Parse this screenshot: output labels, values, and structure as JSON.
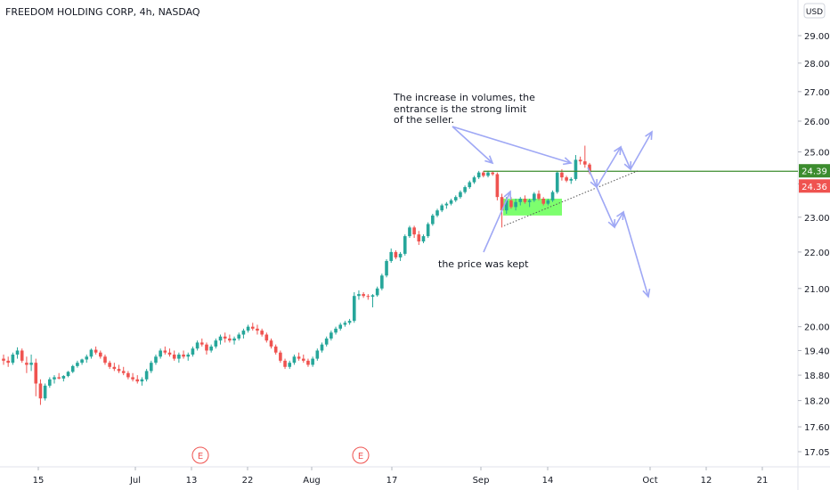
{
  "header": {
    "title": "FREEDOM HOLDING CORP, 4h, NASDAQ"
  },
  "currency_label": "USD",
  "colors": {
    "up": "#26a69a",
    "down": "#ef5350",
    "line": "#3c8c2e",
    "annotation": "#9fa8f5",
    "zone": "#66ff55",
    "price_badge": "#ef5350",
    "line_badge": "#3c8c2e"
  },
  "chart_data": {
    "type": "candlestick",
    "y_scale": "log",
    "ylim": [
      16.8,
      30.0
    ],
    "y_ticks": [
      "29.00",
      "28.00",
      "27.00",
      "26.00",
      "25.00",
      "24.00",
      "23.00",
      "22.00",
      "21.00",
      "20.00",
      "19.40",
      "18.80",
      "18.20",
      "17.60",
      "17.05"
    ],
    "x_ticks": [
      "15",
      "Jul",
      "13",
      "22",
      "Aug",
      "17",
      "Sep",
      "14",
      "Oct",
      "12",
      "21"
    ],
    "horizontal_level": {
      "value": 24.39,
      "label": "24.39"
    },
    "last_price": {
      "value": 24.36,
      "label": "24.36"
    },
    "earnings_markers": [
      "E",
      "E"
    ],
    "annotations": [
      "The increase in volumes, the",
      "entrance is the strong limit",
      "of the seller.",
      "the price was kept"
    ],
    "candles": [
      [
        19.2,
        19.3,
        19.05,
        19.15
      ],
      [
        19.15,
        19.25,
        19.0,
        19.1
      ],
      [
        19.1,
        19.35,
        19.05,
        19.3
      ],
      [
        19.3,
        19.48,
        19.2,
        19.4
      ],
      [
        19.4,
        19.45,
        19.1,
        19.15
      ],
      [
        19.1,
        19.25,
        18.85,
        19.05
      ],
      [
        19.05,
        19.3,
        18.9,
        19.1
      ],
      [
        19.1,
        19.2,
        18.3,
        18.6
      ],
      [
        18.6,
        18.7,
        18.1,
        18.25
      ],
      [
        18.25,
        18.6,
        18.2,
        18.55
      ],
      [
        18.55,
        18.75,
        18.5,
        18.7
      ],
      [
        18.7,
        18.8,
        18.6,
        18.75
      ],
      [
        18.75,
        18.85,
        18.7,
        18.72
      ],
      [
        18.72,
        18.8,
        18.65,
        18.78
      ],
      [
        18.78,
        18.9,
        18.75,
        18.88
      ],
      [
        18.88,
        19.05,
        18.85,
        19.02
      ],
      [
        19.02,
        19.15,
        18.98,
        19.1
      ],
      [
        19.1,
        19.2,
        19.05,
        19.18
      ],
      [
        19.18,
        19.3,
        19.1,
        19.25
      ],
      [
        19.25,
        19.45,
        19.2,
        19.42
      ],
      [
        19.42,
        19.5,
        19.3,
        19.35
      ],
      [
        19.35,
        19.4,
        19.2,
        19.25
      ],
      [
        19.25,
        19.3,
        19.05,
        19.1
      ],
      [
        19.1,
        19.15,
        18.95,
        19.0
      ],
      [
        19.0,
        19.1,
        18.9,
        18.95
      ],
      [
        18.95,
        19.05,
        18.85,
        18.9
      ],
      [
        18.9,
        19.0,
        18.8,
        18.85
      ],
      [
        18.85,
        18.9,
        18.7,
        18.75
      ],
      [
        18.75,
        18.85,
        18.65,
        18.7
      ],
      [
        18.7,
        18.8,
        18.6,
        18.65
      ],
      [
        18.65,
        18.75,
        18.55,
        18.7
      ],
      [
        18.7,
        18.95,
        18.65,
        18.9
      ],
      [
        18.9,
        19.15,
        18.85,
        19.1
      ],
      [
        19.1,
        19.3,
        19.05,
        19.25
      ],
      [
        19.25,
        19.45,
        19.2,
        19.4
      ],
      [
        19.4,
        19.5,
        19.3,
        19.35
      ],
      [
        19.35,
        19.45,
        19.25,
        19.3
      ],
      [
        19.3,
        19.4,
        19.15,
        19.2
      ],
      [
        19.2,
        19.35,
        19.1,
        19.3
      ],
      [
        19.3,
        19.4,
        19.2,
        19.25
      ],
      [
        19.25,
        19.35,
        19.15,
        19.3
      ],
      [
        19.3,
        19.5,
        19.25,
        19.45
      ],
      [
        19.45,
        19.65,
        19.4,
        19.6
      ],
      [
        19.6,
        19.7,
        19.5,
        19.55
      ],
      [
        19.55,
        19.6,
        19.3,
        19.4
      ],
      [
        19.4,
        19.55,
        19.35,
        19.5
      ],
      [
        19.5,
        19.7,
        19.45,
        19.65
      ],
      [
        19.65,
        19.8,
        19.55,
        19.75
      ],
      [
        19.75,
        19.85,
        19.6,
        19.7
      ],
      [
        19.7,
        19.8,
        19.6,
        19.65
      ],
      [
        19.65,
        19.75,
        19.55,
        19.7
      ],
      [
        19.7,
        19.85,
        19.65,
        19.8
      ],
      [
        19.8,
        19.95,
        19.7,
        19.9
      ],
      [
        19.9,
        20.05,
        19.85,
        20.0
      ],
      [
        20.0,
        20.1,
        19.9,
        19.95
      ],
      [
        19.95,
        20.05,
        19.8,
        19.9
      ],
      [
        19.9,
        19.95,
        19.75,
        19.8
      ],
      [
        19.8,
        19.85,
        19.6,
        19.65
      ],
      [
        19.65,
        19.7,
        19.45,
        19.5
      ],
      [
        19.5,
        19.55,
        19.3,
        19.35
      ],
      [
        19.35,
        19.4,
        19.1,
        19.15
      ],
      [
        19.15,
        19.2,
        18.95,
        19.0
      ],
      [
        19.0,
        19.15,
        18.95,
        19.1
      ],
      [
        19.1,
        19.3,
        19.05,
        19.25
      ],
      [
        19.25,
        19.35,
        19.15,
        19.2
      ],
      [
        19.2,
        19.3,
        19.1,
        19.15
      ],
      [
        19.15,
        19.2,
        19.0,
        19.05
      ],
      [
        19.05,
        19.25,
        19.0,
        19.2
      ],
      [
        19.2,
        19.45,
        19.15,
        19.4
      ],
      [
        19.4,
        19.6,
        19.35,
        19.55
      ],
      [
        19.55,
        19.75,
        19.5,
        19.7
      ],
      [
        19.7,
        19.9,
        19.65,
        19.85
      ],
      [
        19.85,
        20.0,
        19.8,
        19.95
      ],
      [
        19.95,
        20.1,
        19.9,
        20.05
      ],
      [
        20.05,
        20.15,
        20.0,
        20.1
      ],
      [
        20.1,
        20.2,
        20.05,
        20.15
      ],
      [
        20.15,
        20.9,
        20.1,
        20.8
      ],
      [
        20.8,
        20.95,
        20.7,
        20.85
      ],
      [
        20.85,
        20.9,
        20.75,
        20.8
      ],
      [
        20.8,
        20.85,
        20.7,
        20.78
      ],
      [
        20.78,
        20.85,
        20.5,
        20.82
      ],
      [
        20.82,
        21.05,
        20.78,
        21.0
      ],
      [
        21.0,
        21.4,
        20.95,
        21.35
      ],
      [
        21.35,
        21.8,
        21.3,
        21.75
      ],
      [
        21.75,
        22.1,
        21.7,
        22.0
      ],
      [
        22.0,
        22.05,
        21.8,
        21.85
      ],
      [
        21.85,
        22.0,
        21.75,
        21.95
      ],
      [
        21.95,
        22.5,
        21.9,
        22.45
      ],
      [
        22.45,
        22.75,
        22.4,
        22.7
      ],
      [
        22.7,
        22.75,
        22.4,
        22.5
      ],
      [
        22.5,
        22.6,
        22.2,
        22.3
      ],
      [
        22.3,
        22.5,
        22.25,
        22.45
      ],
      [
        22.45,
        22.85,
        22.4,
        22.8
      ],
      [
        22.8,
        23.1,
        22.75,
        23.05
      ],
      [
        23.05,
        23.25,
        23.0,
        23.2
      ],
      [
        23.2,
        23.4,
        23.15,
        23.35
      ],
      [
        23.35,
        23.45,
        23.25,
        23.4
      ],
      [
        23.4,
        23.55,
        23.35,
        23.5
      ],
      [
        23.5,
        23.65,
        23.45,
        23.6
      ],
      [
        23.6,
        23.8,
        23.55,
        23.75
      ],
      [
        23.75,
        23.95,
        23.7,
        23.9
      ],
      [
        23.9,
        24.1,
        23.85,
        24.05
      ],
      [
        24.05,
        24.25,
        24.0,
        24.2
      ],
      [
        24.2,
        24.4,
        24.15,
        24.35
      ],
      [
        24.35,
        24.4,
        24.2,
        24.25
      ],
      [
        24.25,
        24.4,
        24.2,
        24.35
      ],
      [
        24.35,
        24.4,
        24.25,
        24.3
      ],
      [
        24.3,
        24.35,
        23.5,
        23.6
      ],
      [
        23.6,
        23.7,
        22.7,
        23.2
      ],
      [
        23.2,
        23.6,
        23.1,
        23.5
      ],
      [
        23.5,
        23.6,
        23.25,
        23.3
      ],
      [
        23.3,
        23.55,
        23.2,
        23.45
      ],
      [
        23.45,
        23.6,
        23.35,
        23.55
      ],
      [
        23.55,
        23.65,
        23.4,
        23.45
      ],
      [
        23.45,
        23.55,
        23.3,
        23.5
      ],
      [
        23.5,
        23.75,
        23.45,
        23.7
      ],
      [
        23.7,
        23.8,
        23.5,
        23.55
      ],
      [
        23.55,
        23.6,
        23.35,
        23.4
      ],
      [
        23.4,
        23.55,
        23.35,
        23.5
      ],
      [
        23.5,
        23.8,
        23.45,
        23.75
      ],
      [
        23.75,
        24.4,
        23.7,
        24.35
      ],
      [
        24.35,
        24.45,
        24.1,
        24.2
      ],
      [
        24.2,
        24.25,
        24.05,
        24.1
      ],
      [
        24.1,
        24.2,
        24.0,
        24.15
      ],
      [
        24.15,
        24.9,
        24.1,
        24.75
      ],
      [
        24.75,
        24.85,
        24.6,
        24.7
      ],
      [
        24.7,
        25.2,
        24.5,
        24.6
      ],
      [
        24.6,
        24.65,
        24.3,
        24.36
      ]
    ]
  }
}
